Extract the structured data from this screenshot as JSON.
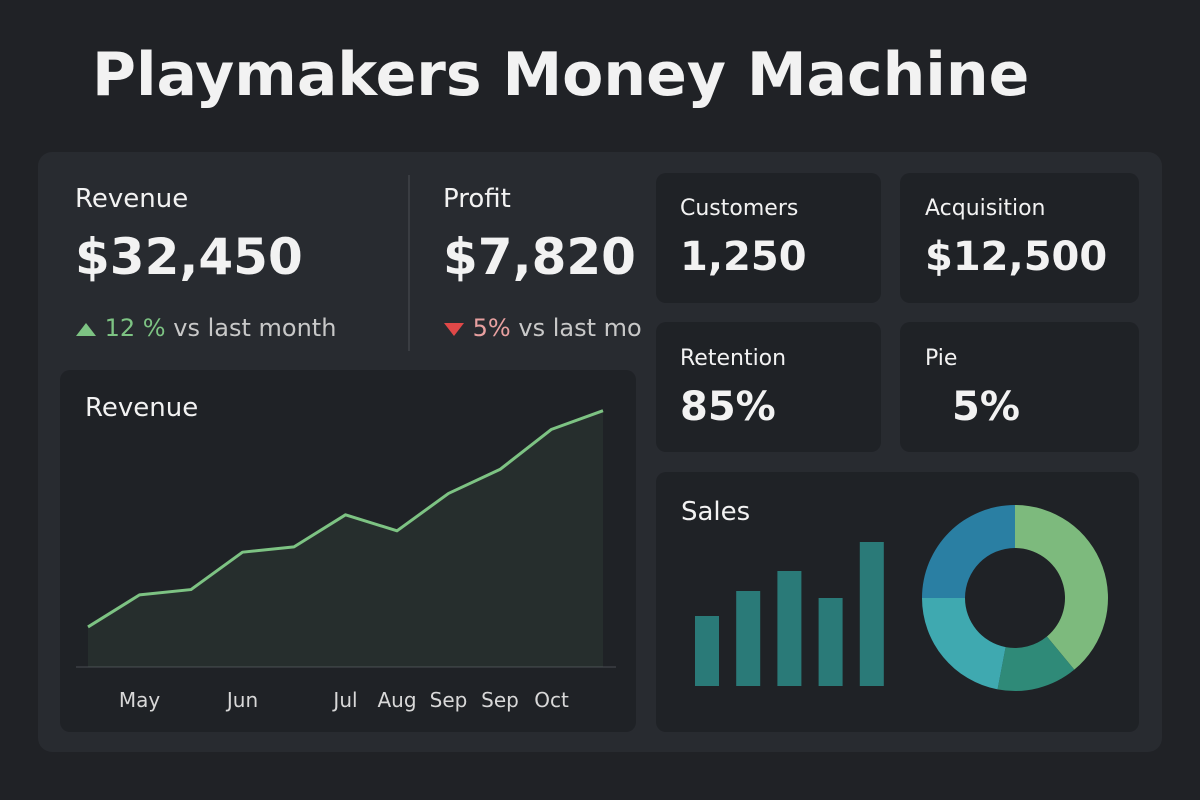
{
  "header": {
    "title": "Playmakers Money Machine"
  },
  "kpis": [
    {
      "label": "Revenue",
      "value": "$32,450",
      "change": "12 %",
      "note": "vs last month",
      "direction": "up"
    },
    {
      "label": "Profit",
      "value": "$7,820",
      "change": "5%",
      "note": "vs last mo",
      "direction": "down"
    }
  ],
  "cards": [
    {
      "label": "Customers",
      "value": "1,250"
    },
    {
      "label": "Acquisition",
      "value": "$12,500"
    },
    {
      "label": "Retention",
      "value": "85%"
    },
    {
      "label": "Pie",
      "value": "5%"
    }
  ],
  "chart_data": [
    {
      "type": "line",
      "title": "Revenue",
      "categories": [
        null,
        "May",
        null,
        "Jun",
        null,
        "Jul",
        "Aug",
        "Sep",
        "Sep",
        "Oct",
        null
      ],
      "values": [
        15,
        27,
        29,
        43,
        45,
        57,
        51,
        65,
        74,
        89,
        96
      ],
      "color": "#7dc383",
      "ylim": [
        0,
        100
      ]
    },
    {
      "type": "bar",
      "title": "Sales",
      "categories": [
        null,
        null,
        null,
        null,
        null
      ],
      "values": [
        70,
        95,
        115,
        88,
        144
      ],
      "color": "#2a7a78",
      "ylim": [
        0,
        160
      ]
    },
    {
      "type": "pie",
      "values": [
        39,
        14,
        22,
        25
      ],
      "colors": [
        "#7dba7d",
        "#2f8a78",
        "#3fa9b0",
        "#2a7fa3"
      ]
    }
  ]
}
